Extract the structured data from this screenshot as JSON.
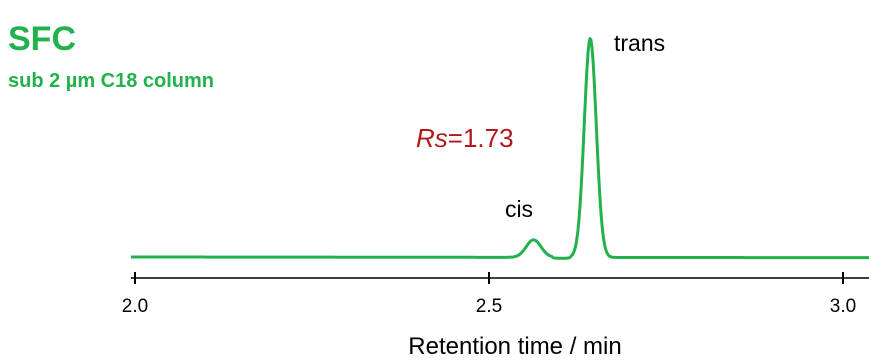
{
  "chart_data": {
    "type": "line",
    "title": "SFC",
    "subtitle": "sub 2 µm C18 column",
    "xlabel": "Retention time / min",
    "ylabel": "",
    "xlim": [
      2.0,
      3.05
    ],
    "x_ticks": [
      "2.0",
      "2.5",
      "3.0"
    ],
    "line_color": "#22b14c",
    "series": [
      {
        "baseline": 0,
        "peaks": [
          {
            "label": "cis",
            "retention_time": 2.563,
            "height": 0.08
          },
          {
            "label": "trans",
            "retention_time": 2.643,
            "height": 1.0
          }
        ]
      }
    ],
    "annotations": [
      {
        "italic": "Rs",
        "rest": "=1.73",
        "color": "#b2171b"
      }
    ]
  }
}
